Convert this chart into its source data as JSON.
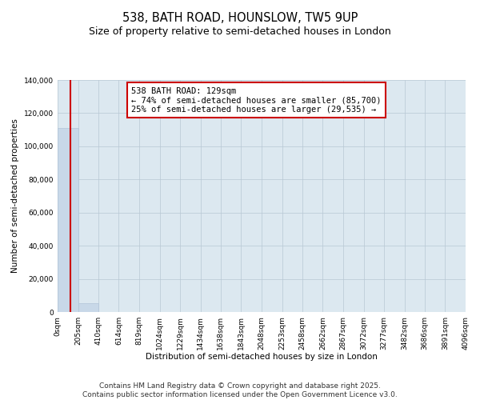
{
  "title": "538, BATH ROAD, HOUNSLOW, TW5 9UP",
  "subtitle": "Size of property relative to semi-detached houses in London",
  "xlabel": "Distribution of semi-detached houses by size in London",
  "ylabel": "Number of semi-detached properties",
  "property_size": 129,
  "annotation_line1": "538 BATH ROAD: 129sqm",
  "annotation_line2": "← 74% of semi-detached houses are smaller (85,700)",
  "annotation_line3": "25% of semi-detached houses are larger (29,535) →",
  "bar_color": "#c8d8e8",
  "bar_edge_color": "#b0c4d8",
  "vline_color": "#cc0000",
  "annotation_box_color": "#ffffff",
  "annotation_box_edge": "#cc0000",
  "background_color": "#ffffff",
  "plot_bg_color": "#dce8f0",
  "grid_color": "#b8c8d4",
  "bin_edges": [
    0,
    205,
    410,
    614,
    819,
    1024,
    1229,
    1434,
    1638,
    1843,
    2048,
    2253,
    2458,
    2662,
    2867,
    3072,
    3277,
    3482,
    3686,
    3891,
    4096
  ],
  "bin_labels": [
    "0sqm",
    "205sqm",
    "410sqm",
    "614sqm",
    "819sqm",
    "1024sqm",
    "1229sqm",
    "1434sqm",
    "1638sqm",
    "1843sqm",
    "2048sqm",
    "2253sqm",
    "2458sqm",
    "2662sqm",
    "2867sqm",
    "3072sqm",
    "3277sqm",
    "3482sqm",
    "3686sqm",
    "3891sqm",
    "4096sqm"
  ],
  "bar_heights": [
    111235,
    5500,
    200,
    80,
    40,
    20,
    10,
    8,
    6,
    4,
    3,
    3,
    2,
    2,
    2,
    1,
    1,
    1,
    1,
    1
  ],
  "ylim": [
    0,
    140000
  ],
  "yticks": [
    0,
    20000,
    40000,
    60000,
    80000,
    100000,
    120000,
    140000
  ],
  "footer_line1": "Contains HM Land Registry data © Crown copyright and database right 2025.",
  "footer_line2": "Contains public sector information licensed under the Open Government Licence v3.0.",
  "title_fontsize": 10.5,
  "subtitle_fontsize": 9,
  "axis_label_fontsize": 7.5,
  "tick_fontsize": 6.5,
  "annotation_fontsize": 7.5,
  "footer_fontsize": 6.5
}
